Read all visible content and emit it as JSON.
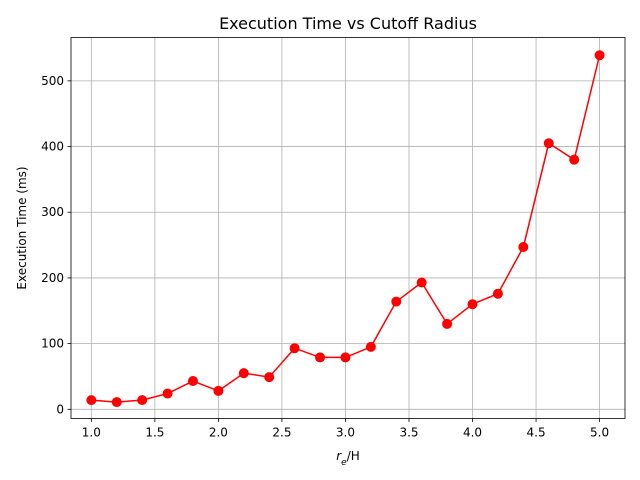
{
  "chart_data": {
    "type": "line",
    "title": "Execution Time vs Cutoff Radius",
    "xlabel": {
      "r": "r",
      "sub": "e",
      "rest": "/H"
    },
    "ylabel": "Execution Time (ms)",
    "xlim": [
      0.84,
      5.2
    ],
    "ylim": [
      -14,
      566
    ],
    "grid": true,
    "x_ticks": [
      1.0,
      1.5,
      2.0,
      2.5,
      3.0,
      3.5,
      4.0,
      4.5,
      5.0
    ],
    "x_tick_labels": [
      "1.0",
      "1.5",
      "2.0",
      "2.5",
      "3.0",
      "3.5",
      "4.0",
      "4.5",
      "5.0"
    ],
    "y_ticks": [
      0,
      100,
      200,
      300,
      400,
      500
    ],
    "y_tick_labels": [
      "0",
      "100",
      "200",
      "300",
      "400",
      "500"
    ],
    "series": [
      {
        "name": "Execution Time",
        "color": "#ff0000",
        "marker": "circle",
        "x": [
          1.0,
          1.2,
          1.4,
          1.6,
          1.8,
          2.0,
          2.2,
          2.4,
          2.6,
          2.8,
          3.0,
          3.2,
          3.4,
          3.6,
          3.8,
          4.0,
          4.2,
          4.4,
          4.6,
          4.8,
          5.0
        ],
        "y": [
          14,
          11,
          14,
          24,
          43,
          28,
          55,
          49,
          93,
          79,
          79,
          95,
          164,
          193,
          130,
          160,
          176,
          247,
          405,
          380,
          539
        ]
      }
    ]
  }
}
